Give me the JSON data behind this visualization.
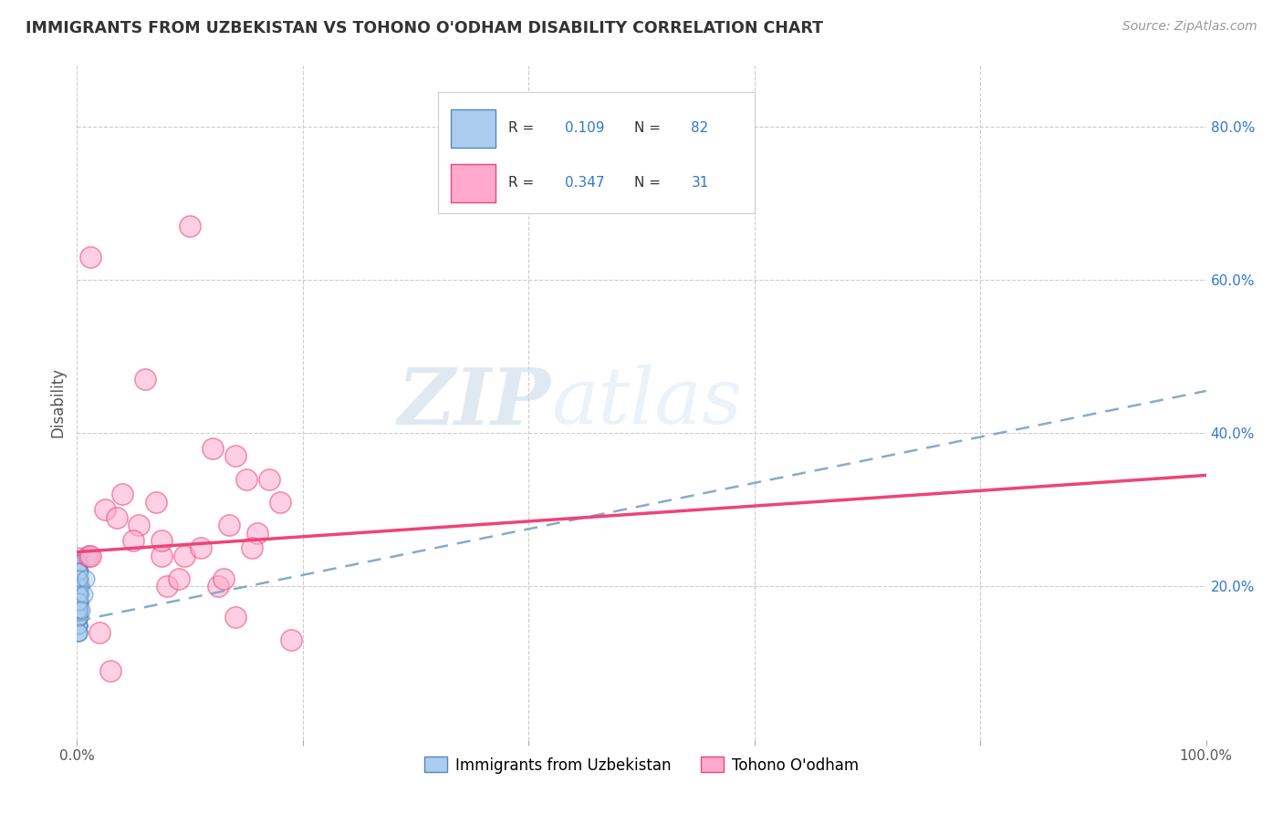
{
  "title": "IMMIGRANTS FROM UZBEKISTAN VS TOHONO O'ODHAM DISABILITY CORRELATION CHART",
  "source": "Source: ZipAtlas.com",
  "ylabel": "Disability",
  "xlim": [
    0,
    1.0
  ],
  "ylim": [
    0,
    0.88
  ],
  "x_ticks": [
    0.0,
    0.2,
    0.4,
    0.6,
    0.8,
    1.0
  ],
  "x_tick_labels": [
    "0.0%",
    "",
    "",
    "",
    "",
    "100.0%"
  ],
  "y_ticks": [
    0.0,
    0.2,
    0.4,
    0.6,
    0.8
  ],
  "y_tick_labels_left": [
    "",
    "",
    "",
    "",
    ""
  ],
  "y_tick_labels_right": [
    "",
    "20.0%",
    "40.0%",
    "60.0%",
    "80.0%"
  ],
  "grid_color": "#cccccc",
  "background_color": "#ffffff",
  "blue_color": "#aaccee",
  "pink_color": "#ffaacc",
  "blue_edge_color": "#5588bb",
  "pink_edge_color": "#ee4477",
  "blue_line_color": "#88aacc",
  "pink_line_color": "#ee4477",
  "series1_label": "Immigrants from Uzbekistan",
  "series2_label": "Tohono O'odham",
  "R1": 0.109,
  "N1": 82,
  "R2": 0.347,
  "N2": 31,
  "watermark_zip": "ZIP",
  "watermark_atlas": "atlas",
  "blue_points_x": [
    0.001,
    0.002,
    0.001,
    0.003,
    0.001,
    0.001,
    0.002,
    0.001,
    0.001,
    0.002,
    0.002,
    0.001,
    0.001,
    0.002,
    0.001,
    0.001,
    0.001,
    0.002,
    0.001,
    0.002,
    0.003,
    0.001,
    0.001,
    0.002,
    0.002,
    0.001,
    0.001,
    0.001,
    0.001,
    0.001,
    0.001,
    0.002,
    0.002,
    0.001,
    0.001,
    0.001,
    0.001,
    0.001,
    0.001,
    0.002,
    0.001,
    0.001,
    0.001,
    0.002,
    0.001,
    0.001,
    0.001,
    0.001,
    0.002,
    0.001,
    0.001,
    0.001,
    0.001,
    0.001,
    0.001,
    0.001,
    0.001,
    0.001,
    0.001,
    0.001,
    0.002,
    0.001,
    0.001,
    0.001,
    0.001,
    0.001,
    0.001,
    0.001,
    0.001,
    0.001,
    0.002,
    0.001,
    0.001,
    0.001,
    0.001,
    0.001,
    0.001,
    0.001,
    0.01,
    0.008,
    0.006,
    0.004
  ],
  "blue_points_y": [
    0.22,
    0.21,
    0.19,
    0.2,
    0.24,
    0.15,
    0.23,
    0.18,
    0.2,
    0.22,
    0.19,
    0.17,
    0.21,
    0.16,
    0.23,
    0.19,
    0.2,
    0.18,
    0.17,
    0.22,
    0.2,
    0.21,
    0.16,
    0.18,
    0.19,
    0.17,
    0.15,
    0.22,
    0.18,
    0.2,
    0.14,
    0.21,
    0.19,
    0.17,
    0.16,
    0.2,
    0.18,
    0.16,
    0.22,
    0.19,
    0.15,
    0.18,
    0.21,
    0.19,
    0.16,
    0.23,
    0.18,
    0.2,
    0.17,
    0.22,
    0.2,
    0.14,
    0.18,
    0.22,
    0.19,
    0.16,
    0.2,
    0.18,
    0.15,
    0.23,
    0.19,
    0.17,
    0.21,
    0.16,
    0.23,
    0.19,
    0.18,
    0.22,
    0.16,
    0.2,
    0.18,
    0.22,
    0.19,
    0.17,
    0.14,
    0.21,
    0.19,
    0.18,
    0.24,
    0.21,
    0.19,
    0.17
  ],
  "pink_points_x": [
    0.01,
    0.012,
    0.025,
    0.035,
    0.04,
    0.055,
    0.06,
    0.075,
    0.08,
    0.095,
    0.1,
    0.12,
    0.125,
    0.13,
    0.14,
    0.15,
    0.16,
    0.17,
    0.18,
    0.19,
    0.02,
    0.03,
    0.05,
    0.07,
    0.09,
    0.11,
    0.14,
    0.155,
    0.012,
    0.075,
    0.135
  ],
  "pink_points_y": [
    0.24,
    0.63,
    0.3,
    0.29,
    0.32,
    0.28,
    0.47,
    0.24,
    0.2,
    0.24,
    0.67,
    0.38,
    0.2,
    0.21,
    0.16,
    0.34,
    0.27,
    0.34,
    0.31,
    0.13,
    0.14,
    0.09,
    0.26,
    0.31,
    0.21,
    0.25,
    0.37,
    0.25,
    0.24,
    0.26,
    0.28
  ],
  "blue_trend_x0": 0.0,
  "blue_trend_y0": 0.155,
  "blue_trend_x1": 1.0,
  "blue_trend_y1": 0.455,
  "pink_trend_x0": 0.0,
  "pink_trend_y0": 0.245,
  "pink_trend_x1": 1.0,
  "pink_trend_y1": 0.345
}
